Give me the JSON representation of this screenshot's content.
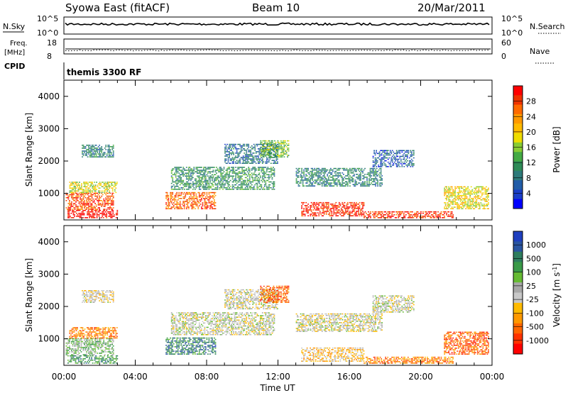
{
  "header": {
    "station": "Syowa East (fitACF)",
    "beam": "Beam 10",
    "date": "20/Mar/2011"
  },
  "top_panels": {
    "nsky_label": "N.Sky",
    "nsky_ticks": [
      "10^5",
      "10^0"
    ],
    "nsearch_label": "N.Search",
    "nsearch_ticks": [
      "10^5",
      "10^0"
    ],
    "freq_label_1": "Freq.",
    "freq_label_2": "[MHz]",
    "freq_ticks": [
      "18",
      "8"
    ],
    "nave_label": "Nave",
    "nave_ticks": [
      "60",
      "0"
    ],
    "cpid_label": "CPID",
    "cpid_value": "themis 3300 RF"
  },
  "chart_data": [
    {
      "type": "heatmap",
      "quantity": "Power",
      "ylabel": "Slant Range [km]",
      "xlabel": "Time UT",
      "ylim": [
        180,
        4500
      ],
      "xlim_hours": [
        0,
        24
      ],
      "yticks": [
        "1000",
        "2000",
        "3000",
        "4000"
      ],
      "xticks": [
        "00:00",
        "04:00",
        "08:00",
        "12:00",
        "16:00",
        "20:00",
        "00:00"
      ],
      "colorbar_label": "Power [dB]",
      "colorbar_ticks": [
        "28",
        "24",
        "20",
        "16",
        "12",
        "8",
        "4"
      ],
      "colorbar_colors": [
        "#ff0000",
        "#ee3300",
        "#ff6a00",
        "#ff9900",
        "#ffbb00",
        "#eedd00",
        "#88cc33",
        "#44aa44",
        "#2e8b57",
        "#2d7a7a",
        "#225da8",
        "#1a3ec8",
        "#0000ff"
      ],
      "regions": [
        {
          "t": [
            0.2,
            3.0
          ],
          "r": [
            220,
            460
          ],
          "v": 0.97
        },
        {
          "t": [
            0.1,
            2.8
          ],
          "r": [
            480,
            980
          ],
          "v": 0.85
        },
        {
          "t": [
            0.3,
            3.0
          ],
          "r": [
            1000,
            1350
          ],
          "v": 0.55
        },
        {
          "t": [
            1.0,
            2.8
          ],
          "r": [
            2100,
            2500
          ],
          "v": 0.3
        },
        {
          "t": [
            5.7,
            8.5
          ],
          "r": [
            500,
            1000
          ],
          "v": 0.82
        },
        {
          "t": [
            6.0,
            11.8
          ],
          "r": [
            1100,
            1800
          ],
          "v": 0.35
        },
        {
          "t": [
            9.0,
            12.0
          ],
          "r": [
            1900,
            2500
          ],
          "v": 0.25
        },
        {
          "t": [
            11.0,
            12.6
          ],
          "r": [
            2100,
            2600
          ],
          "v": 0.45
        },
        {
          "t": [
            13.3,
            16.8
          ],
          "r": [
            280,
            700
          ],
          "v": 0.92
        },
        {
          "t": [
            16.8,
            21.8
          ],
          "r": [
            220,
            420
          ],
          "v": 0.9
        },
        {
          "t": [
            13.0,
            17.8
          ],
          "r": [
            1200,
            1750
          ],
          "v": 0.3
        },
        {
          "t": [
            17.3,
            19.6
          ],
          "r": [
            1800,
            2300
          ],
          "v": 0.2
        },
        {
          "t": [
            21.3,
            23.8
          ],
          "r": [
            500,
            1200
          ],
          "v": 0.6
        }
      ]
    },
    {
      "type": "heatmap",
      "quantity": "Velocity",
      "ylabel": "Slant Range [km]",
      "xlabel": "Time UT",
      "ylim": [
        180,
        4500
      ],
      "xlim_hours": [
        0,
        24
      ],
      "yticks": [
        "1000",
        "2000",
        "3000",
        "4000"
      ],
      "xticks": [
        "00:00",
        "04:00",
        "08:00",
        "12:00",
        "16:00",
        "20:00",
        "00:00"
      ],
      "colorbar_label": "Velocity [m s",
      "colorbar_label_sup": "-1",
      "colorbar_label_end": "]",
      "colorbar_ticks": [
        "1000",
        "500",
        "100",
        "25",
        "-25",
        "-100",
        "-500",
        "-1000"
      ],
      "colorbar_colors": [
        "#1f3fbf",
        "#2a55a0",
        "#2e7d5e",
        "#3a9a48",
        "#66bb33",
        "#a8a8a8",
        "#c8c8c8",
        "#ffbb00",
        "#ff9900",
        "#ff6600",
        "#ff3300",
        "#ff0000"
      ],
      "regions": [
        {
          "t": [
            0.2,
            3.0
          ],
          "r": [
            220,
            460
          ],
          "v": 0.72
        },
        {
          "t": [
            0.1,
            2.8
          ],
          "r": [
            480,
            980
          ],
          "v": 0.62
        },
        {
          "t": [
            0.3,
            3.0
          ],
          "r": [
            1000,
            1350
          ],
          "v": 0.25
        },
        {
          "t": [
            1.0,
            2.8
          ],
          "r": [
            2100,
            2500
          ],
          "v": 0.45
        },
        {
          "t": [
            5.7,
            8.5
          ],
          "r": [
            500,
            1000
          ],
          "v": 0.78
        },
        {
          "t": [
            6.0,
            11.8
          ],
          "r": [
            1100,
            1800
          ],
          "v": 0.5
        },
        {
          "t": [
            9.0,
            12.0
          ],
          "r": [
            1900,
            2500
          ],
          "v": 0.48
        },
        {
          "t": [
            11.0,
            12.6
          ],
          "r": [
            2100,
            2600
          ],
          "v": 0.2
        },
        {
          "t": [
            13.3,
            16.8
          ],
          "r": [
            280,
            700
          ],
          "v": 0.38
        },
        {
          "t": [
            16.8,
            21.8
          ],
          "r": [
            220,
            420
          ],
          "v": 0.25
        },
        {
          "t": [
            13.0,
            17.8
          ],
          "r": [
            1200,
            1750
          ],
          "v": 0.48
        },
        {
          "t": [
            17.3,
            19.6
          ],
          "r": [
            1800,
            2300
          ],
          "v": 0.5
        },
        {
          "t": [
            21.3,
            23.8
          ],
          "r": [
            500,
            1200
          ],
          "v": 0.2
        }
      ]
    }
  ]
}
